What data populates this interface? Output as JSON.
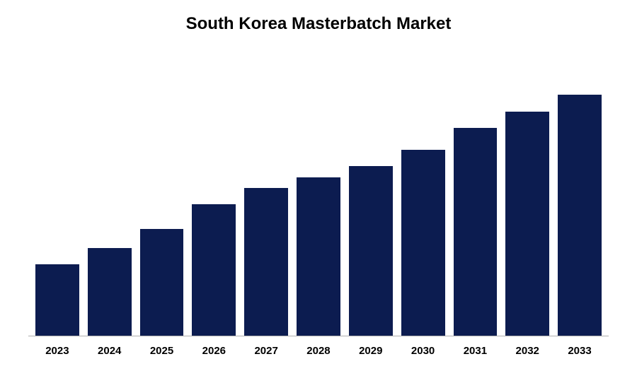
{
  "chart": {
    "type": "bar",
    "title": "South Korea Masterbatch Market",
    "title_fontsize": 24,
    "title_color": "#000000",
    "title_fontweight": "bold",
    "background_color": "#ffffff",
    "axis_line_color": "#b0b0b0",
    "bar_color": "#0c1c50",
    "bar_width": 0.78,
    "label_fontsize": 15,
    "label_color": "#000000",
    "label_fontweight": "bold",
    "ylim": [
      0,
      100
    ],
    "categories": [
      "2023",
      "2024",
      "2025",
      "2026",
      "2027",
      "2028",
      "2029",
      "2030",
      "2031",
      "2032",
      "2033"
    ],
    "values": [
      26,
      32,
      39,
      48,
      54,
      58,
      62,
      68,
      76,
      82,
      88
    ]
  }
}
